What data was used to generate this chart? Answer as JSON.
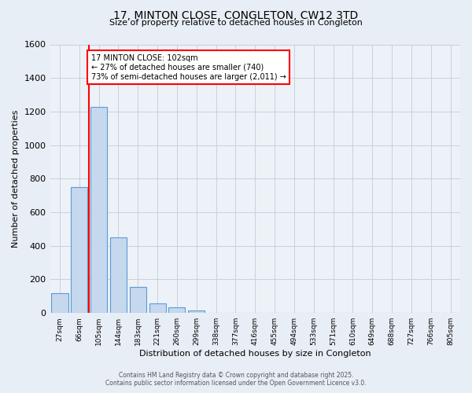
{
  "title_line1": "17, MINTON CLOSE, CONGLETON, CW12 3TD",
  "title_line2": "Size of property relative to detached houses in Congleton",
  "xlabel": "Distribution of detached houses by size in Congleton",
  "ylabel": "Number of detached properties",
  "bin_labels": [
    "27sqm",
    "66sqm",
    "105sqm",
    "144sqm",
    "183sqm",
    "221sqm",
    "260sqm",
    "299sqm",
    "338sqm",
    "377sqm",
    "416sqm",
    "455sqm",
    "494sqm",
    "533sqm",
    "571sqm",
    "610sqm",
    "649sqm",
    "688sqm",
    "727sqm",
    "766sqm",
    "805sqm"
  ],
  "bar_values": [
    120,
    750,
    1230,
    450,
    155,
    55,
    35,
    15,
    0,
    0,
    0,
    0,
    0,
    0,
    0,
    0,
    0,
    0,
    0,
    0,
    0
  ],
  "bar_color": "#c5d8ee",
  "bar_edge_color": "#5b9bd5",
  "vline_color": "red",
  "ylim": [
    0,
    1600
  ],
  "yticks": [
    0,
    200,
    400,
    600,
    800,
    1000,
    1200,
    1400,
    1600
  ],
  "annotation_text": "17 MINTON CLOSE: 102sqm\n← 27% of detached houses are smaller (740)\n73% of semi-detached houses are larger (2,011) →",
  "annotation_box_color": "white",
  "annotation_box_edgecolor": "red",
  "footer_line1": "Contains HM Land Registry data © Crown copyright and database right 2025.",
  "footer_line2": "Contains public sector information licensed under the Open Government Licence v3.0.",
  "background_color": "#e8eef5",
  "plot_background_color": "#edf2f8",
  "grid_color": "#c8d0dc"
}
